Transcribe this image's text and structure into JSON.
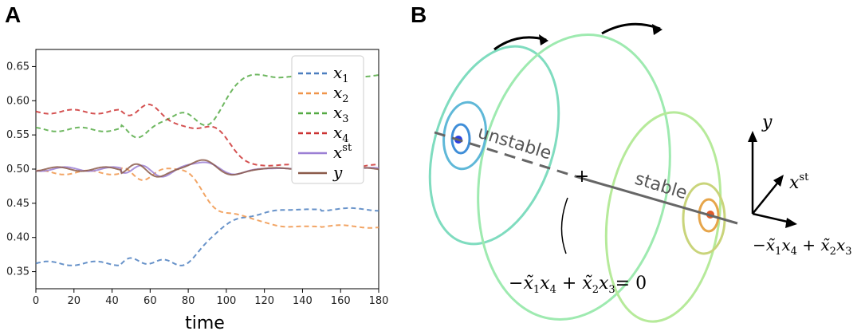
{
  "panels": {
    "a_label": "A",
    "b_label": "B"
  },
  "chart_data": {
    "type": "line",
    "title": "",
    "xlabel": "time",
    "ylabel": "",
    "xlim": [
      0,
      180
    ],
    "ylim": [
      0.325,
      0.675
    ],
    "xticks": [
      "0",
      "20",
      "40",
      "60",
      "80",
      "100",
      "120",
      "140",
      "160",
      "180"
    ],
    "yticks": [
      "0.35",
      "0.40",
      "0.45",
      "0.50",
      "0.55",
      "0.60",
      "0.65"
    ],
    "legend_position": "top-right",
    "series": [
      {
        "name": "x1",
        "sub": "1",
        "color": "#4c7fc0",
        "dash": true,
        "baseline": 0.362,
        "after": 0.441,
        "amp": [
          0.0,
          -0.03,
          0.06,
          -0.08,
          0.04,
          -0.03,
          0.02,
          -0.01
        ]
      },
      {
        "name": "x2",
        "sub": "2",
        "color": "#f0954a",
        "dash": true,
        "baseline": 0.495,
        "after": 0.416,
        "amp": [
          0.0,
          -0.02,
          -0.04,
          0.09,
          -0.08,
          0.04,
          -0.02,
          0.01
        ]
      },
      {
        "name": "x3",
        "sub": "3",
        "color": "#55aa44",
        "dash": true,
        "baseline": 0.558,
        "after": 0.637,
        "amp": [
          0.0,
          -0.02,
          -0.03,
          0.06,
          -0.04,
          0.03,
          -0.02,
          0.01
        ]
      },
      {
        "name": "x4",
        "sub": "4",
        "color": "#cc3333",
        "dash": true,
        "baseline": 0.584,
        "after": 0.505,
        "amp": [
          0.0,
          0.02,
          0.03,
          -0.09,
          0.08,
          -0.04,
          0.02,
          -0.01
        ]
      },
      {
        "name": "xst",
        "sup": "st",
        "color": "#9b7fd4",
        "dash": false,
        "baseline": 0.5,
        "after": 0.5,
        "amp": [
          0.0,
          0.01,
          -0.02,
          0.05,
          -0.05,
          0.03,
          -0.02,
          0.01
        ]
      },
      {
        "name": "y",
        "color": "#8b5a4a",
        "dash": false,
        "baseline": 0.5,
        "after": 0.5,
        "amp": [
          0.0,
          0.03,
          -0.06,
          0.11,
          -0.1,
          0.06,
          -0.03,
          0.01
        ]
      }
    ]
  },
  "diagram": {
    "unstable_label": "unstable",
    "stable_label": "stable",
    "plane_eq": "= 0",
    "axis_y": "y",
    "axis_xst": "x",
    "axis_xst_sup": "st",
    "axis_h": "x"
  }
}
